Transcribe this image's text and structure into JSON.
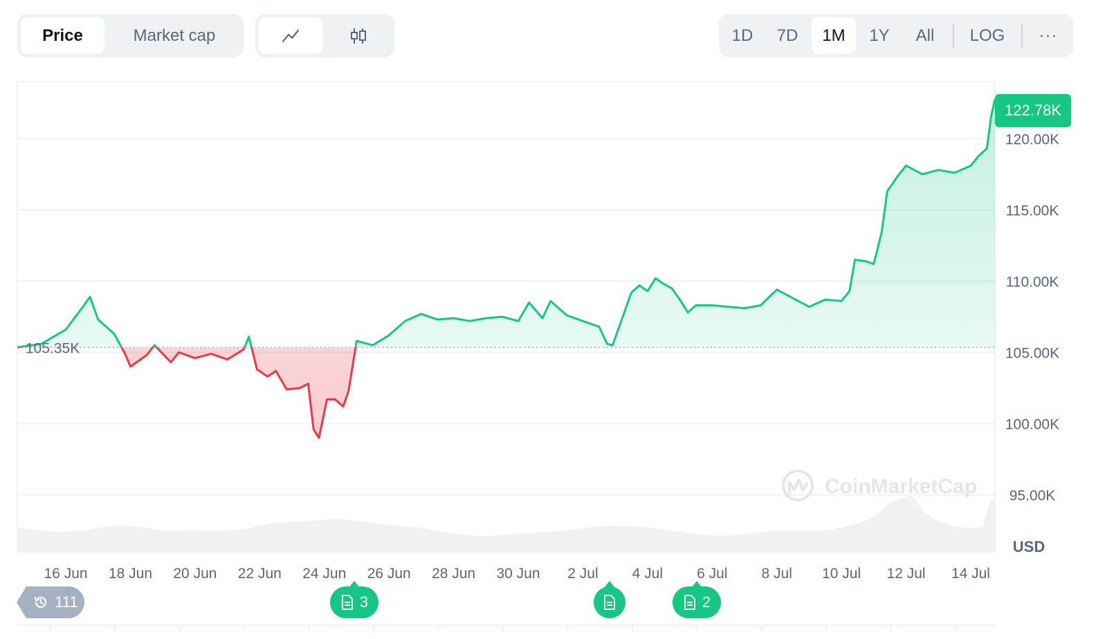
{
  "toolbar": {
    "price_label": "Price",
    "market_cap_label": "Market cap",
    "line_icon": "line-chart-icon",
    "candle_icon": "candlestick-icon",
    "ranges": [
      "1D",
      "7D",
      "1M",
      "1Y",
      "All"
    ],
    "active_range": "1M",
    "log_label": "LOG",
    "more_label": "···"
  },
  "chart_data": {
    "type": "area",
    "x_ticks": [
      "16 Jun",
      "18 Jun",
      "20 Jun",
      "22 Jun",
      "24 Jun",
      "26 Jun",
      "28 Jun",
      "30 Jun",
      "2 Jul",
      "4 Jul",
      "6 Jul",
      "8 Jul",
      "10 Jul",
      "12 Jul",
      "14 Jul"
    ],
    "y_ticks": [
      "120.00K",
      "115.00K",
      "110.00K",
      "105.00K",
      "100.00K",
      "95.00K"
    ],
    "y_tick_values": [
      120000,
      115000,
      110000,
      105000,
      100000,
      95000
    ],
    "ylim": [
      91000,
      124000
    ],
    "xlim": [
      "2025-06-14T12:00",
      "2025-07-14T18:00"
    ],
    "ylabel": "USD",
    "baseline_label": "105.35K",
    "baseline_value": 105350,
    "last_price_label": "122.78K",
    "series": [
      {
        "points": [
          [
            "2025-06-14T12:00",
            105350
          ],
          [
            "2025-06-15T06:00",
            105600
          ],
          [
            "2025-06-16T00:00",
            106600
          ],
          [
            "2025-06-16T12:00",
            108100
          ],
          [
            "2025-06-16T18:00",
            108900
          ],
          [
            "2025-06-17T00:00",
            107300
          ],
          [
            "2025-06-17T12:00",
            106300
          ],
          [
            "2025-06-17T20:00",
            104900
          ],
          [
            "2025-06-18T00:00",
            104000
          ],
          [
            "2025-06-18T12:00",
            104800
          ],
          [
            "2025-06-18T18:00",
            105500
          ],
          [
            "2025-06-19T06:00",
            104300
          ],
          [
            "2025-06-19T12:00",
            105000
          ],
          [
            "2025-06-20T00:00",
            104600
          ],
          [
            "2025-06-20T12:00",
            104900
          ],
          [
            "2025-06-21T00:00",
            104500
          ],
          [
            "2025-06-21T12:00",
            105200
          ],
          [
            "2025-06-21T16:00",
            106100
          ],
          [
            "2025-06-21T22:00",
            103800
          ],
          [
            "2025-06-22T06:00",
            103300
          ],
          [
            "2025-06-22T12:00",
            103700
          ],
          [
            "2025-06-22T20:00",
            102400
          ],
          [
            "2025-06-23T06:00",
            102500
          ],
          [
            "2025-06-23T12:00",
            102800
          ],
          [
            "2025-06-23T16:00",
            99600
          ],
          [
            "2025-06-23T20:00",
            99000
          ],
          [
            "2025-06-24T02:00",
            101700
          ],
          [
            "2025-06-24T08:00",
            101700
          ],
          [
            "2025-06-24T14:00",
            101200
          ],
          [
            "2025-06-24T18:00",
            102300
          ],
          [
            "2025-06-25T00:00",
            105800
          ],
          [
            "2025-06-25T12:00",
            105500
          ],
          [
            "2025-06-26T00:00",
            106200
          ],
          [
            "2025-06-26T12:00",
            107200
          ],
          [
            "2025-06-27T00:00",
            107700
          ],
          [
            "2025-06-27T12:00",
            107300
          ],
          [
            "2025-06-28T00:00",
            107400
          ],
          [
            "2025-06-28T12:00",
            107200
          ],
          [
            "2025-06-29T00:00",
            107400
          ],
          [
            "2025-06-29T12:00",
            107500
          ],
          [
            "2025-06-30T00:00",
            107200
          ],
          [
            "2025-06-30T08:00",
            108500
          ],
          [
            "2025-06-30T18:00",
            107400
          ],
          [
            "2025-07-01T00:00",
            108600
          ],
          [
            "2025-07-01T12:00",
            107600
          ],
          [
            "2025-07-02T00:00",
            107200
          ],
          [
            "2025-07-02T12:00",
            106800
          ],
          [
            "2025-07-02T18:00",
            105600
          ],
          [
            "2025-07-02T22:00",
            105500
          ],
          [
            "2025-07-03T06:00",
            107600
          ],
          [
            "2025-07-03T12:00",
            109200
          ],
          [
            "2025-07-03T18:00",
            109700
          ],
          [
            "2025-07-04T00:00",
            109300
          ],
          [
            "2025-07-04T06:00",
            110200
          ],
          [
            "2025-07-04T12:00",
            109800
          ],
          [
            "2025-07-04T18:00",
            109500
          ],
          [
            "2025-07-05T00:00",
            108700
          ],
          [
            "2025-07-05T06:00",
            107800
          ],
          [
            "2025-07-05T12:00",
            108300
          ],
          [
            "2025-07-06T00:00",
            108300
          ],
          [
            "2025-07-06T12:00",
            108200
          ],
          [
            "2025-07-07T00:00",
            108100
          ],
          [
            "2025-07-07T12:00",
            108300
          ],
          [
            "2025-07-08T00:00",
            109400
          ],
          [
            "2025-07-08T12:00",
            108800
          ],
          [
            "2025-07-09T00:00",
            108200
          ],
          [
            "2025-07-09T12:00",
            108700
          ],
          [
            "2025-07-10T00:00",
            108600
          ],
          [
            "2025-07-10T06:00",
            109300
          ],
          [
            "2025-07-10T10:00",
            111500
          ],
          [
            "2025-07-10T18:00",
            111400
          ],
          [
            "2025-07-11T00:00",
            111200
          ],
          [
            "2025-07-11T06:00",
            113500
          ],
          [
            "2025-07-11T10:00",
            116300
          ],
          [
            "2025-07-11T18:00",
            117400
          ],
          [
            "2025-07-12T00:00",
            118100
          ],
          [
            "2025-07-12T12:00",
            117500
          ],
          [
            "2025-07-13T00:00",
            117800
          ],
          [
            "2025-07-13T12:00",
            117600
          ],
          [
            "2025-07-14T00:00",
            118100
          ],
          [
            "2025-07-14T06:00",
            118800
          ],
          [
            "2025-07-14T12:00",
            119300
          ],
          [
            "2025-07-14T15:00",
            121500
          ],
          [
            "2025-07-14T18:00",
            122780
          ]
        ]
      }
    ],
    "up_color": "#16c784",
    "down_color": "#ea3943",
    "watermark": "CoinMarketCap"
  },
  "badges": {
    "history_count": "111",
    "news_a_count": "3",
    "news_c_count": "2"
  }
}
